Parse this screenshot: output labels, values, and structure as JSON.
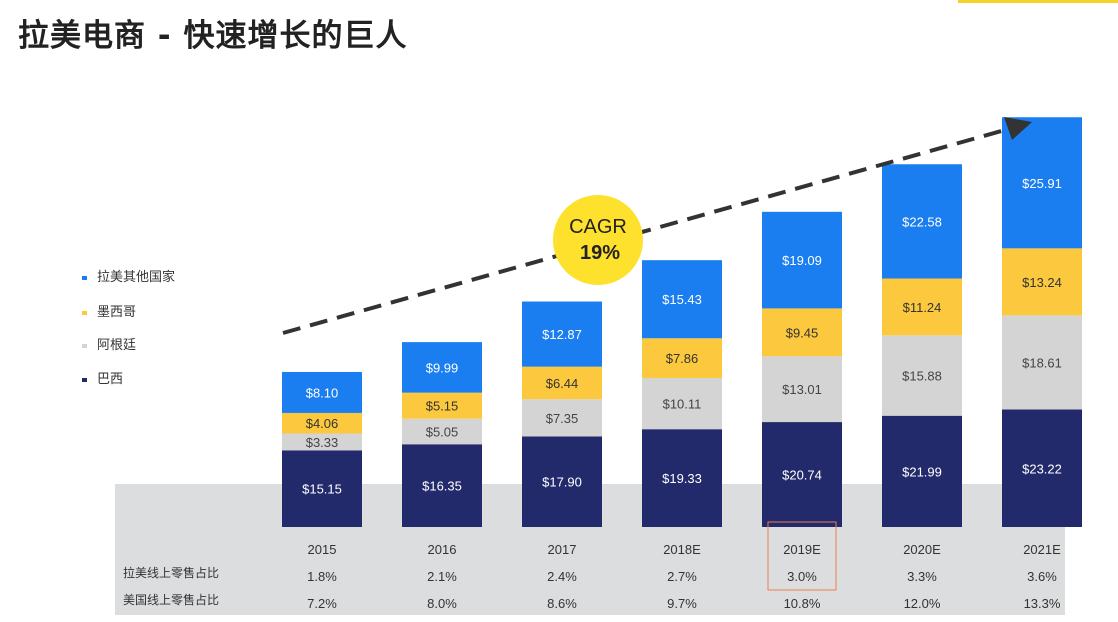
{
  "title": "拉美电商 - 快速增长的巨人",
  "chart_data": {
    "type": "bar",
    "stacked": true,
    "categories": [
      "2015",
      "2016",
      "2017",
      "2018E",
      "2019E",
      "2020E",
      "2021E"
    ],
    "series": [
      {
        "name": "巴西",
        "color": "#232a6b",
        "text_color": "#ffffff",
        "values": [
          15.15,
          16.35,
          17.9,
          19.33,
          20.74,
          21.99,
          23.22
        ],
        "labels": [
          "$15.15",
          "$16.35",
          "$17.90",
          "$19.33",
          "$20.74",
          "$21.99",
          "$23.22"
        ]
      },
      {
        "name": "阿根廷",
        "color": "#d4d4d4",
        "text_color": "#444444",
        "values": [
          3.33,
          5.05,
          7.35,
          10.11,
          13.01,
          15.88,
          18.61
        ],
        "labels": [
          "$3.33",
          "$5.05",
          "$7.35",
          "$10.11",
          "$13.01",
          "$15.88",
          "$18.61"
        ]
      },
      {
        "name": "墨西哥",
        "color": "#fcc83e",
        "text_color": "#333333",
        "values": [
          4.06,
          5.15,
          6.44,
          7.86,
          9.45,
          11.24,
          13.24
        ],
        "labels": [
          "$4.06",
          "$5.15",
          "$6.44",
          "$7.86",
          "$9.45",
          "$11.24",
          "$13.24"
        ]
      },
      {
        "name": "拉美其他国家",
        "color": "#1a7ef0",
        "text_color": "#ffffff",
        "values": [
          8.1,
          9.99,
          12.87,
          15.43,
          19.09,
          22.58,
          25.91
        ],
        "labels": [
          "$8.10",
          "$9.99",
          "$12.87",
          "$15.43",
          "$19.09",
          "$22.58",
          "$25.91"
        ]
      }
    ],
    "legend": [
      "拉美其他国家",
      "墨西哥",
      "阿根廷",
      "巴西"
    ],
    "legend_position": "left",
    "annotation": {
      "label": "CAGR",
      "value": "19%"
    },
    "highlighted_category": "2019E",
    "table": {
      "rows": [
        {
          "label": "拉美线上零售占比",
          "values": [
            "1.8%",
            "2.1%",
            "2.4%",
            "2.7%",
            "3.0%",
            "3.3%",
            "3.6%"
          ]
        },
        {
          "label": "美国线上零售占比",
          "values": [
            "7.2%",
            "8.0%",
            "8.6%",
            "9.7%",
            "10.8%",
            "12.0%",
            "13.3%"
          ]
        }
      ]
    }
  }
}
